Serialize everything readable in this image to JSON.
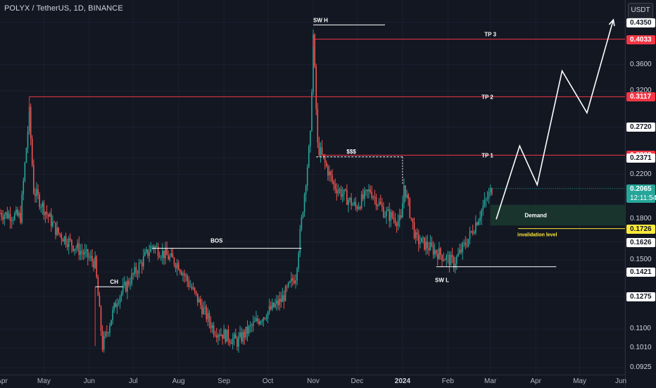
{
  "header": {
    "symbol_title": "POLYX / TetherUS, 1D, BINANCE",
    "currency": "USDT"
  },
  "colors": {
    "bg": "#131722",
    "up": "#26a69a",
    "down": "#ef5350",
    "target_line": "#f23645",
    "invalidation": "#ffeb3b",
    "demand_fill": "#1b3a2e"
  },
  "chart_data": {
    "type": "candlestick",
    "title": "POLYX / TetherUS, 1D, BINANCE",
    "x_range": [
      "2023-04-01",
      "2024-06-01"
    ],
    "y_range": [
      0.092,
      0.46
    ],
    "y_scale": "log",
    "price_axis_ticks": [
      "0.4350",
      "0.3600",
      "0.3200",
      "0.2720",
      "0.2371",
      "0.2200",
      "0.1800",
      "0.1626",
      "0.1500",
      "0.1421",
      "0.1275",
      "0.1100",
      "0.1010",
      "0.0925"
    ],
    "x_tick_labels": [
      "Apr",
      "May",
      "Jun",
      "Jul",
      "Aug",
      "Sep",
      "Oct",
      "Nov",
      "Dec",
      "2024",
      "Feb",
      "Mar",
      "Apr",
      "May",
      "Jun"
    ],
    "price_tags": [
      {
        "value": "0.4350",
        "style": "white"
      },
      {
        "value": "0.4033",
        "style": "red"
      },
      {
        "value": "0.3117",
        "style": "red"
      },
      {
        "value": "0.2720",
        "style": "white"
      },
      {
        "value": "0.2398",
        "style": "red"
      },
      {
        "value": "0.2371",
        "style": "white"
      },
      {
        "value": "0.2065",
        "style": "green",
        "sub": "12:11:54"
      },
      {
        "value": "0.1726",
        "style": "yellow"
      },
      {
        "value": "0.1626",
        "style": "white"
      },
      {
        "value": "0.1421",
        "style": "white"
      },
      {
        "value": "0.1275",
        "style": "white"
      }
    ],
    "key_prices": [
      {
        "date": "2023-04-01",
        "price": 0.185
      },
      {
        "date": "2023-04-15",
        "price": 0.182
      },
      {
        "date": "2023-04-21",
        "price": 0.29
      },
      {
        "date": "2023-04-24",
        "price": 0.205
      },
      {
        "date": "2023-05-10",
        "price": 0.17
      },
      {
        "date": "2023-06-05",
        "price": 0.148
      },
      {
        "date": "2023-06-10",
        "price": 0.102
      },
      {
        "date": "2023-06-20",
        "price": 0.126
      },
      {
        "date": "2023-07-01",
        "price": 0.14
      },
      {
        "date": "2023-07-14",
        "price": 0.16
      },
      {
        "date": "2023-08-01",
        "price": 0.147
      },
      {
        "date": "2023-08-25",
        "price": 0.11
      },
      {
        "date": "2023-09-10",
        "price": 0.104
      },
      {
        "date": "2023-09-25",
        "price": 0.115
      },
      {
        "date": "2023-10-10",
        "price": 0.125
      },
      {
        "date": "2023-10-20",
        "price": 0.14
      },
      {
        "date": "2023-10-25",
        "price": 0.19
      },
      {
        "date": "2023-10-30",
        "price": 0.26
      },
      {
        "date": "2023-11-01",
        "price": 0.41
      },
      {
        "date": "2023-11-04",
        "price": 0.25
      },
      {
        "date": "2023-11-15",
        "price": 0.21
      },
      {
        "date": "2023-11-30",
        "price": 0.19
      },
      {
        "date": "2023-12-10",
        "price": 0.205
      },
      {
        "date": "2023-12-20",
        "price": 0.185
      },
      {
        "date": "2023-12-31",
        "price": 0.178
      },
      {
        "date": "2024-01-02",
        "price": 0.21
      },
      {
        "date": "2024-01-10",
        "price": 0.165
      },
      {
        "date": "2024-01-25",
        "price": 0.155
      },
      {
        "date": "2024-02-05",
        "price": 0.148
      },
      {
        "date": "2024-02-15",
        "price": 0.165
      },
      {
        "date": "2024-02-25",
        "price": 0.19
      },
      {
        "date": "2024-03-02",
        "price": 0.2065
      }
    ],
    "levels": [
      {
        "name": "SW H",
        "price": 0.43,
        "from": "2023-11-01",
        "to": "2023-12-20",
        "color": "#ffffff"
      },
      {
        "name": "TP 3",
        "price": 0.4033,
        "from": "2023-11-01",
        "to": "2024-06-01",
        "color": "#f23645"
      },
      {
        "name": "TP 2",
        "price": 0.3117,
        "from": "2023-04-21",
        "to": "2024-06-01",
        "color": "#f23645"
      },
      {
        "name": "TP 1",
        "price": 0.2398,
        "from": "2023-11-05",
        "to": "2024-06-01",
        "color": "#f23645"
      },
      {
        "name": "$$$",
        "price": 0.238,
        "from": "2023-11-03",
        "to": "2024-01-01",
        "color": "#ffffff",
        "dashed": true
      },
      {
        "name": "BOS",
        "price": 0.158,
        "from": "2023-07-14",
        "to": "2023-10-24",
        "color": "#ffffff"
      },
      {
        "name": "CH",
        "price": 0.133,
        "from": "2023-06-05",
        "to": "2023-06-24",
        "color": "#ffffff"
      },
      {
        "name": "SW L",
        "price": 0.1455,
        "from": "2024-01-24",
        "to": "2024-04-15",
        "color": "#ffffff"
      },
      {
        "name": "invalidation level",
        "price": 0.1726,
        "from": "2024-03-20",
        "to": "2024-06-01",
        "color": "#ffeb3b"
      }
    ],
    "demand_zone": {
      "label": "Demand",
      "low": 0.175,
      "high": 0.192,
      "from": "2024-03-01",
      "to": "2024-06-01"
    },
    "projection": [
      {
        "date": "2024-03-05",
        "price": 0.18
      },
      {
        "date": "2024-03-21",
        "price": 0.25
      },
      {
        "date": "2024-04-02",
        "price": 0.21
      },
      {
        "date": "2024-04-19",
        "price": 0.35
      },
      {
        "date": "2024-05-06",
        "price": 0.29
      },
      {
        "date": "2024-05-24",
        "price": 0.44
      }
    ]
  }
}
